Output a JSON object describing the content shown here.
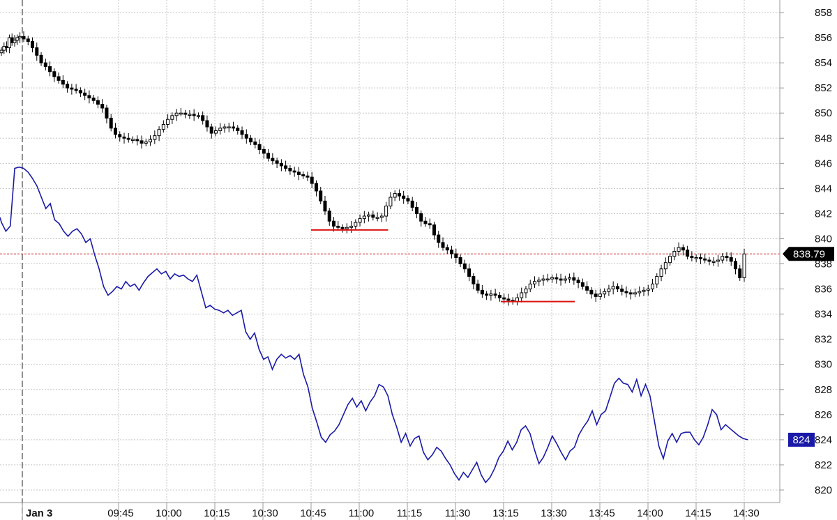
{
  "chart_data": {
    "type": "candlestick+line",
    "title": "",
    "xlabel": "",
    "ylabel": "",
    "ylim": [
      819,
      859
    ],
    "y_ticks": [
      820,
      822,
      824,
      826,
      828,
      830,
      832,
      834,
      836,
      838,
      840,
      842,
      844,
      846,
      848,
      850,
      852,
      854,
      856,
      858
    ],
    "x_ticks": [
      "Jan 3",
      "09:45",
      "10:00",
      "10:15",
      "10:30",
      "10:45",
      "11:00",
      "11:15",
      "11:30",
      "13:15",
      "13:30",
      "13:45",
      "14:00",
      "14:15",
      "14:30"
    ],
    "x_tick_times": [
      9.5,
      9.75,
      10.0,
      10.25,
      10.5,
      10.75,
      11.0,
      11.25,
      11.5,
      13.25,
      13.5,
      13.75,
      14.0,
      14.25,
      14.5
    ],
    "session_break": "Jan 3",
    "grid": true,
    "price_series": {
      "last_value": 838.79,
      "last_label": "838.79",
      "label_color": "#000000",
      "reference_line_color": "#cc2222",
      "wick_color": "#000000",
      "up_fill": "#ffffff",
      "down_fill": "#000000",
      "closes": [
        855.0,
        855.3,
        855.2,
        856.0,
        855.6,
        855.8,
        856.0,
        856.1,
        855.9,
        855.7,
        855.2,
        854.6,
        854.0,
        853.7,
        853.3,
        852.9,
        852.6,
        852.3,
        852.0,
        851.9,
        851.8,
        851.6,
        851.4,
        851.2,
        851.0,
        850.7,
        850.4,
        849.6,
        848.8,
        848.3,
        848.1,
        848.0,
        847.9,
        847.9,
        847.8,
        847.6,
        847.7,
        847.9,
        848.2,
        848.7,
        849.1,
        849.5,
        849.8,
        850.0,
        850.0,
        849.9,
        849.9,
        849.8,
        849.8,
        849.4,
        848.9,
        848.4,
        848.6,
        848.8,
        848.9,
        848.9,
        848.8,
        848.6,
        848.3,
        848.0,
        847.7,
        847.5,
        847.1,
        846.8,
        846.4,
        846.2,
        846.0,
        845.8,
        845.6,
        845.4,
        845.3,
        845.1,
        845.0,
        844.9,
        844.4,
        843.8,
        843.0,
        842.2,
        841.4,
        841.0,
        840.9,
        840.8,
        840.9,
        841.0,
        841.3,
        841.6,
        841.8,
        841.9,
        841.7,
        841.7,
        841.8,
        842.6,
        843.3,
        843.6,
        843.4,
        843.2,
        843.0,
        842.5,
        842.0,
        841.4,
        841.2,
        841.1,
        840.3,
        839.7,
        839.3,
        839.1,
        838.8,
        838.5,
        838.0,
        837.6,
        837.0,
        836.4,
        835.9,
        835.6,
        835.5,
        835.6,
        835.5,
        835.3,
        835.2,
        835.1,
        835.0,
        835.3,
        835.7,
        836.0,
        836.4,
        836.6,
        836.7,
        836.8,
        836.8,
        836.9,
        836.8,
        836.7,
        836.8,
        836.9,
        836.7,
        836.5,
        836.2,
        835.9,
        835.6,
        835.4,
        835.6,
        835.8,
        836.0,
        836.2,
        836.0,
        835.8,
        835.7,
        835.6,
        835.7,
        835.8,
        835.9,
        836.0,
        836.4,
        837.0,
        837.6,
        838.1,
        838.6,
        839.0,
        839.3,
        839.1,
        838.6,
        838.5,
        838.5,
        838.4,
        838.3,
        838.2,
        838.2,
        838.3,
        838.6,
        838.5,
        838.2,
        837.6,
        836.9,
        838.79
      ],
      "support_lines": [
        {
          "from_time": 10.75,
          "to_time": 11.15,
          "price": 840.7
        },
        {
          "from_time": 13.15,
          "to_time": 13.62,
          "price": 835.0
        }
      ]
    },
    "comparison_series": {
      "last_value": 824,
      "last_label": "824",
      "color": "#1a1aa8",
      "start_value": 841.7,
      "values": [
        841.3,
        840.6,
        841.0,
        845.6,
        845.7,
        845.6,
        845.3,
        844.8,
        844.2,
        843.3,
        842.4,
        842.8,
        841.5,
        841.2,
        840.6,
        840.2,
        840.6,
        840.8,
        840.4,
        839.7,
        840.0,
        838.7,
        837.6,
        836.2,
        835.5,
        835.8,
        836.2,
        836.0,
        836.6,
        836.2,
        836.4,
        835.9,
        836.5,
        837.0,
        837.3,
        837.6,
        837.2,
        837.4,
        836.8,
        837.2,
        837.0,
        837.1,
        836.8,
        836.6,
        837.1,
        835.8,
        834.5,
        834.7,
        834.4,
        834.3,
        834.1,
        834.3,
        833.9,
        834.1,
        834.3,
        832.6,
        832.0,
        832.5,
        831.2,
        830.4,
        830.6,
        829.6,
        830.4,
        830.8,
        830.5,
        830.7,
        830.4,
        830.8,
        829.2,
        828.2,
        826.5,
        825.4,
        824.2,
        823.8,
        824.4,
        824.7,
        825.2,
        826.0,
        826.8,
        827.3,
        826.6,
        827.1,
        826.3,
        827.0,
        827.5,
        828.4,
        828.2,
        827.5,
        826.0,
        825.0,
        823.8,
        824.5,
        823.5,
        824.1,
        824.3,
        823.0,
        822.4,
        822.8,
        823.4,
        823.1,
        822.5,
        822.0,
        821.3,
        820.8,
        821.4,
        821.0,
        821.6,
        822.2,
        821.2,
        820.6,
        821.0,
        821.7,
        822.6,
        823.1,
        823.9,
        823.2,
        823.8,
        824.8,
        825.1,
        824.5,
        823.2,
        822.1,
        822.6,
        823.4,
        824.3,
        823.7,
        823.0,
        822.4,
        823.1,
        823.4,
        824.4,
        825.0,
        825.5,
        826.3,
        825.2,
        826.0,
        826.3,
        827.4,
        828.5,
        828.9,
        828.5,
        828.4,
        827.8,
        828.8,
        827.5,
        828.4,
        827.5,
        825.5,
        823.5,
        822.5,
        823.9,
        824.5,
        823.8,
        824.5,
        824.6,
        824.6,
        824.0,
        823.6,
        824.2,
        825.2,
        826.4,
        826.0,
        824.8,
        825.2,
        824.9,
        824.6,
        824.3,
        824.1,
        824.0
      ]
    }
  }
}
